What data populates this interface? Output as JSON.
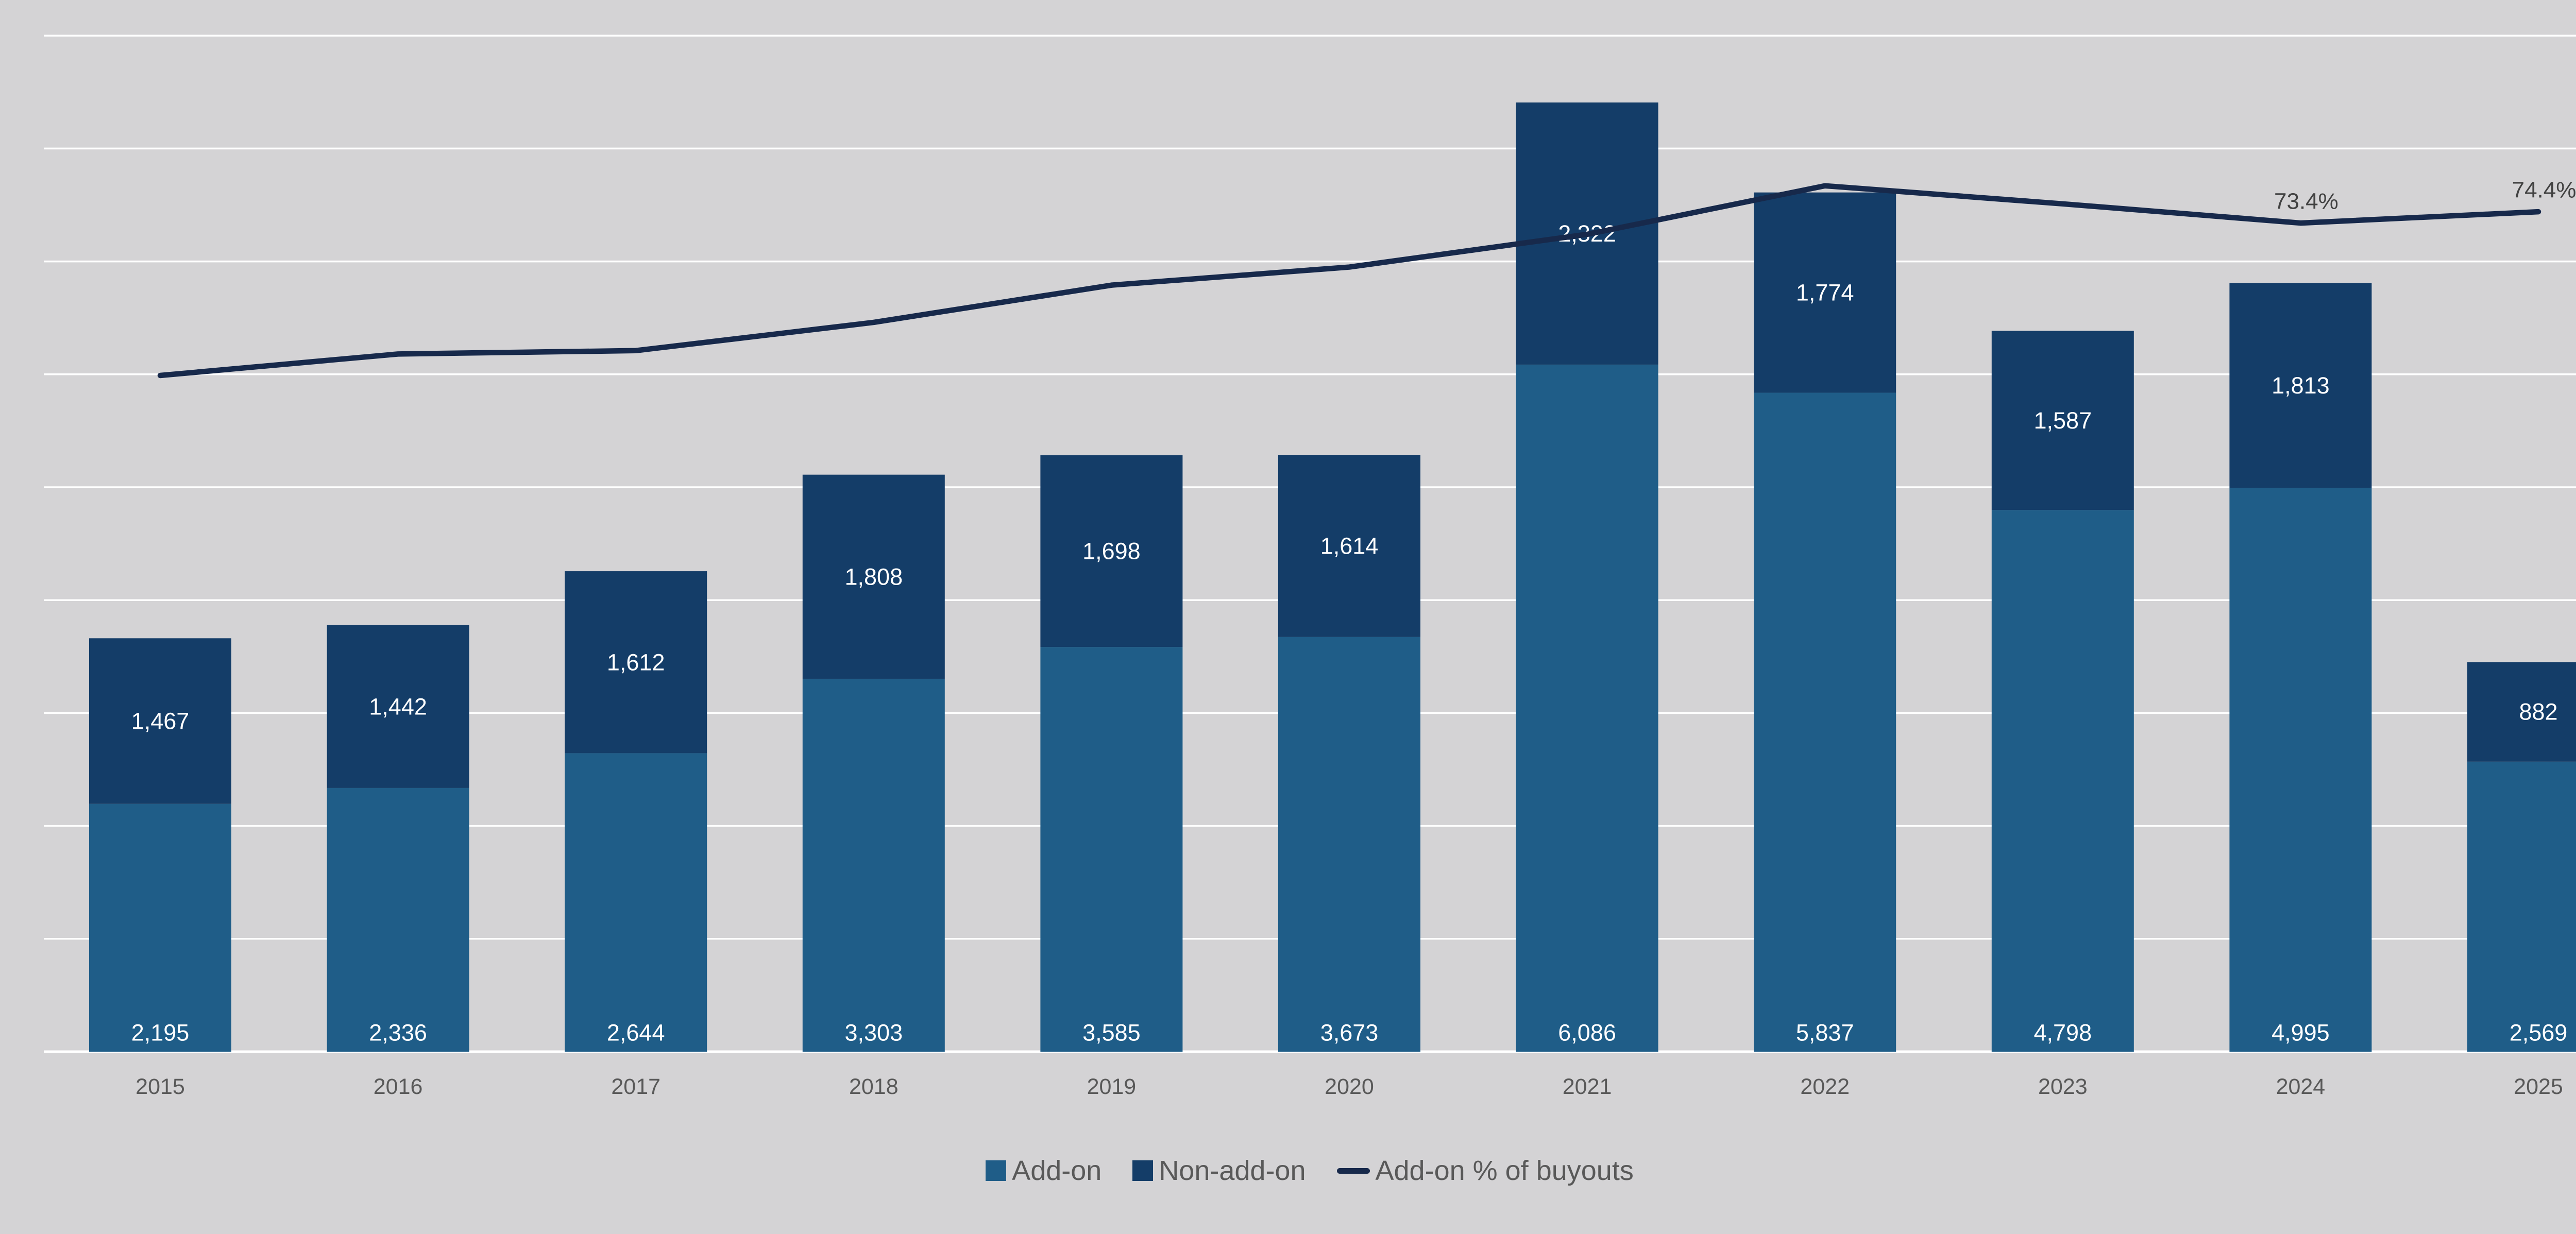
{
  "page": {
    "background": "#d4d3d5",
    "gridline_color": "#ffffff",
    "axis_line_color": "#ffffff"
  },
  "chart_data": {
    "type": "bar",
    "subtype": "stacked-column-with-line-overlay",
    "title": "",
    "categories": [
      "2015",
      "2016",
      "2017",
      "2018",
      "2019",
      "2020",
      "2021",
      "2022",
      "2023",
      "2024",
      "2025"
    ],
    "series": [
      {
        "name": "Add-on",
        "type": "bar",
        "color": "#1f5d88",
        "values": [
          2195,
          2336,
          2644,
          3303,
          3585,
          3673,
          6086,
          5837,
          4798,
          4995,
          2569
        ]
      },
      {
        "name": "Non-add-on",
        "type": "bar",
        "color": "#143d68",
        "values": [
          1467,
          1442,
          1612,
          1808,
          1698,
          1614,
          2322,
          1774,
          1587,
          1813,
          882
        ]
      },
      {
        "name": "Add-on % of buyouts",
        "type": "line",
        "color": "#17294b",
        "unit": "%",
        "values": [
          59.9,
          61.8,
          62.1,
          64.6,
          67.9,
          69.5,
          72.4,
          76.7,
          75.1,
          73.4,
          74.4
        ]
      }
    ],
    "data_labels": {
      "format": "#,###",
      "color": "#ffffff"
    },
    "line_point_labels": [
      {
        "index": 9,
        "text": "73.4%"
      },
      {
        "index": 10,
        "text": "74.4%"
      }
    ],
    "value_axis": {
      "min": 0,
      "max": 9000,
      "step": 1000,
      "tick_labels_visible": false
    },
    "secondary_axis": {
      "min": 0,
      "max": 90,
      "unit": "%",
      "tick_labels_visible": false
    },
    "grid": true,
    "legend_position": "bottom"
  },
  "legend": {
    "items": [
      {
        "label": "Add-on",
        "marker": "square",
        "color": "#1f5d88"
      },
      {
        "label": "Non-add-on",
        "marker": "square",
        "color": "#143d68"
      },
      {
        "label": "Add-on % of buyouts",
        "marker": "line",
        "color": "#17294b"
      }
    ]
  }
}
